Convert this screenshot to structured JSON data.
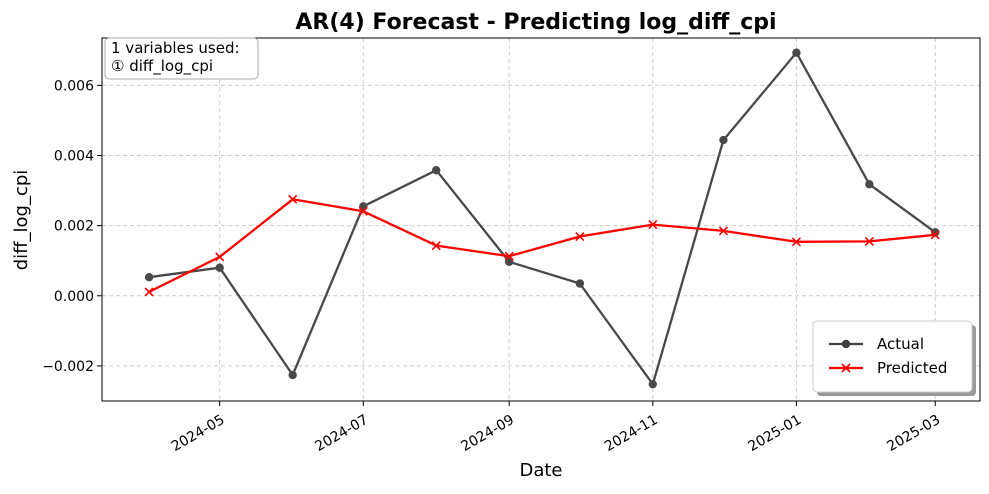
{
  "chart_data": {
    "type": "line",
    "title": "AR(4) Forecast - Predicting log_diff_cpi",
    "xlabel": "Date",
    "ylabel": "diff_log_cpi",
    "x_tick_labels": [
      "2024-05",
      "2024-07",
      "2024-09",
      "2024-11",
      "2025-01",
      "2025-03"
    ],
    "x_ticks": [
      "2024-05-01",
      "2024-07-01",
      "2024-09-01",
      "2024-11-01",
      "2025-01-01",
      "2025-03-01"
    ],
    "y_tick_labels": [
      "−0.002",
      "0.000",
      "0.002",
      "0.004",
      "0.006"
    ],
    "y_ticks": [
      -0.002,
      0.0,
      0.002,
      0.004,
      0.006
    ],
    "ylim": [
      -0.003,
      0.00735
    ],
    "xlim": [
      "2024-03-12",
      "2025-03-20"
    ],
    "grid": true,
    "legend_position": "lower-right",
    "annotation": {
      "line1": "1 variables used:",
      "line2": "① diff_log_cpi"
    },
    "x": [
      "2024-04-01",
      "2024-05-01",
      "2024-06-01",
      "2024-07-01",
      "2024-08-01",
      "2024-09-01",
      "2024-10-01",
      "2024-11-01",
      "2024-12-01",
      "2025-01-01",
      "2025-02-01",
      "2025-03-01"
    ],
    "series": [
      {
        "name": "Actual",
        "color": "#404040",
        "marker": "circle",
        "values": [
          0.00053,
          0.0008,
          -0.00226,
          0.00255,
          0.00358,
          0.00097,
          0.00035,
          -0.00252,
          0.00444,
          0.00693,
          0.00318,
          0.00181
        ]
      },
      {
        "name": "Predicted",
        "color": "#ff0000",
        "marker": "x",
        "values": [
          0.00011,
          0.00111,
          0.00275,
          0.00241,
          0.00143,
          0.00113,
          0.00169,
          0.00203,
          0.00185,
          0.00154,
          0.00155,
          0.00174
        ]
      }
    ]
  }
}
